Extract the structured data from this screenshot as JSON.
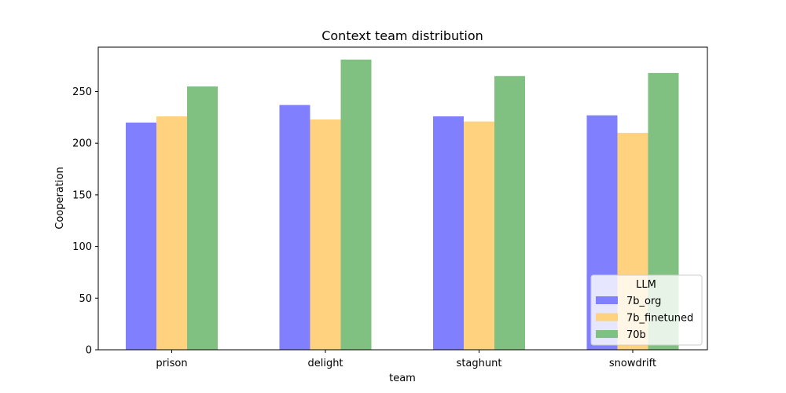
{
  "chart_data": {
    "type": "bar",
    "title": "Context team distribution",
    "xlabel": "team",
    "ylabel": "Cooperation",
    "categories": [
      "prison",
      "delight",
      "staghunt",
      "snowdrift"
    ],
    "ylim": [
      0,
      293
    ],
    "yticks": [
      0,
      50,
      100,
      150,
      200,
      250
    ],
    "grid": false,
    "legend": {
      "title": "LLM",
      "placement": "bottom-right"
    },
    "series": [
      {
        "name": "7b_org",
        "color": "#8080ff",
        "values": [
          220,
          237,
          226,
          227
        ]
      },
      {
        "name": "7b_finetuned",
        "color": "#ffd280",
        "values": [
          226,
          223,
          221,
          210
        ]
      },
      {
        "name": "70b",
        "color": "#80c080",
        "values": [
          255,
          281,
          265,
          268
        ]
      }
    ]
  }
}
